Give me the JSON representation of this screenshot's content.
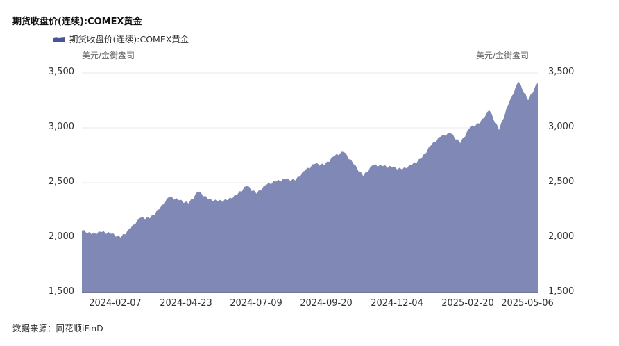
{
  "title": "期货收盘价(连续):COMEX黄金",
  "legend": {
    "label": "期货收盘价(连续):COMEX黄金",
    "color": "#4a5596"
  },
  "units": {
    "left": "美元/金衡盎司",
    "right": "美元/金衡盎司"
  },
  "source": "数据来源：同花顺iFinD",
  "colors": {
    "area": "#8088b6",
    "grid": "#e8e8e8"
  },
  "y_ticks": [
    "3,500",
    "3,000",
    "2,500",
    "2,000",
    "1,500"
  ],
  "x_ticks": [
    "2024-02-07",
    "2024-04-23",
    "2024-07-09",
    "2024-09-20",
    "2024-12-04",
    "2025-02-20",
    "2025-05-06"
  ],
  "chart_data": {
    "type": "area",
    "title": "期货收盘价(连续):COMEX黄金",
    "xlabel": "",
    "ylabel": "美元/金衡盎司",
    "ylim": [
      1500,
      3500
    ],
    "grid": true,
    "legend_position": "top",
    "x_tick_labels": [
      "2024-02-07",
      "2024-04-23",
      "2024-07-09",
      "2024-09-20",
      "2024-12-04",
      "2025-02-20",
      "2025-05-06"
    ],
    "x": [
      "2024-01-02",
      "2024-01-15",
      "2024-02-01",
      "2024-02-07",
      "2024-02-15",
      "2024-03-01",
      "2024-03-08",
      "2024-03-20",
      "2024-04-01",
      "2024-04-12",
      "2024-04-23",
      "2024-05-03",
      "2024-05-20",
      "2024-06-03",
      "2024-06-14",
      "2024-07-01",
      "2024-07-09",
      "2024-07-17",
      "2024-07-25",
      "2024-08-02",
      "2024-08-15",
      "2024-08-27",
      "2024-09-06",
      "2024-09-20",
      "2024-09-26",
      "2024-10-08",
      "2024-10-18",
      "2024-10-30",
      "2024-11-06",
      "2024-11-14",
      "2024-11-25",
      "2024-12-04",
      "2024-12-11",
      "2024-12-19",
      "2025-01-02",
      "2025-01-15",
      "2025-01-30",
      "2025-02-11",
      "2025-02-20",
      "2025-03-03",
      "2025-03-14",
      "2025-03-26",
      "2025-04-02",
      "2025-04-08",
      "2025-04-14",
      "2025-04-22",
      "2025-04-29",
      "2025-05-06"
    ],
    "series": [
      {
        "name": "期货收盘价(连续):COMEX黄金",
        "values": [
          2065,
          2030,
          2050,
          2035,
          2000,
          2080,
          2180,
          2175,
          2260,
          2370,
          2340,
          2310,
          2420,
          2350,
          2330,
          2340,
          2390,
          2470,
          2400,
          2480,
          2510,
          2530,
          2520,
          2610,
          2670,
          2660,
          2740,
          2780,
          2670,
          2560,
          2660,
          2650,
          2640,
          2620,
          2660,
          2720,
          2840,
          2920,
          2950,
          2860,
          3000,
          3040,
          3160,
          2980,
          3220,
          3420,
          3250,
          3410
        ]
      }
    ]
  }
}
